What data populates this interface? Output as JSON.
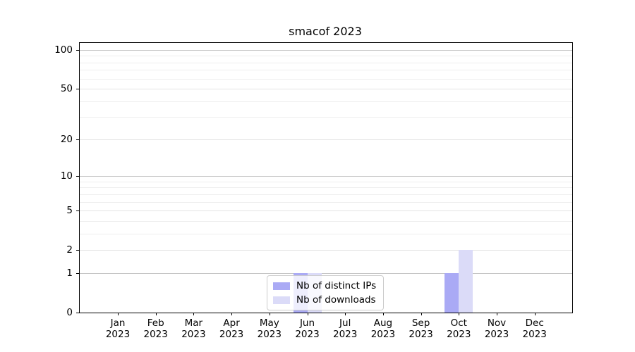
{
  "window": {
    "background_color": "#ffffff"
  },
  "chart_data": {
    "type": "bar",
    "title": "smacof 2023",
    "categories": [
      "Jan",
      "Feb",
      "Mar",
      "Apr",
      "May",
      "Jun",
      "Jul",
      "Aug",
      "Sep",
      "Oct",
      "Nov",
      "Dec"
    ],
    "category_year": "2023",
    "series": [
      {
        "name": "Nb of distinct IPs",
        "color": "#aaaaf5",
        "values": [
          0,
          0,
          0,
          0,
          0,
          1,
          0,
          0,
          0,
          1,
          0,
          0
        ]
      },
      {
        "name": "Nb of downloads",
        "color": "#dbdbf8",
        "values": [
          0,
          0,
          0,
          0,
          0,
          1,
          0,
          0,
          0,
          2,
          0,
          0
        ]
      }
    ],
    "xlabel": "",
    "ylabel": "",
    "ylim": [
      0,
      100
    ],
    "yscale": "log1p",
    "yticks": [
      0,
      1,
      2,
      5,
      10,
      20,
      50,
      100
    ],
    "minor_gridlines": [
      3,
      4,
      6,
      7,
      8,
      9,
      30,
      40,
      60,
      70,
      80,
      90
    ],
    "grid": true,
    "legend_position": "lower center",
    "colors": {
      "major_gridline": "#c6c6c6",
      "sub_gridline": "#e4e4e4",
      "minor_gridline": "#eeeeee",
      "axis": "#000000",
      "legend_border": "#cccccc",
      "text": "#000000"
    }
  }
}
